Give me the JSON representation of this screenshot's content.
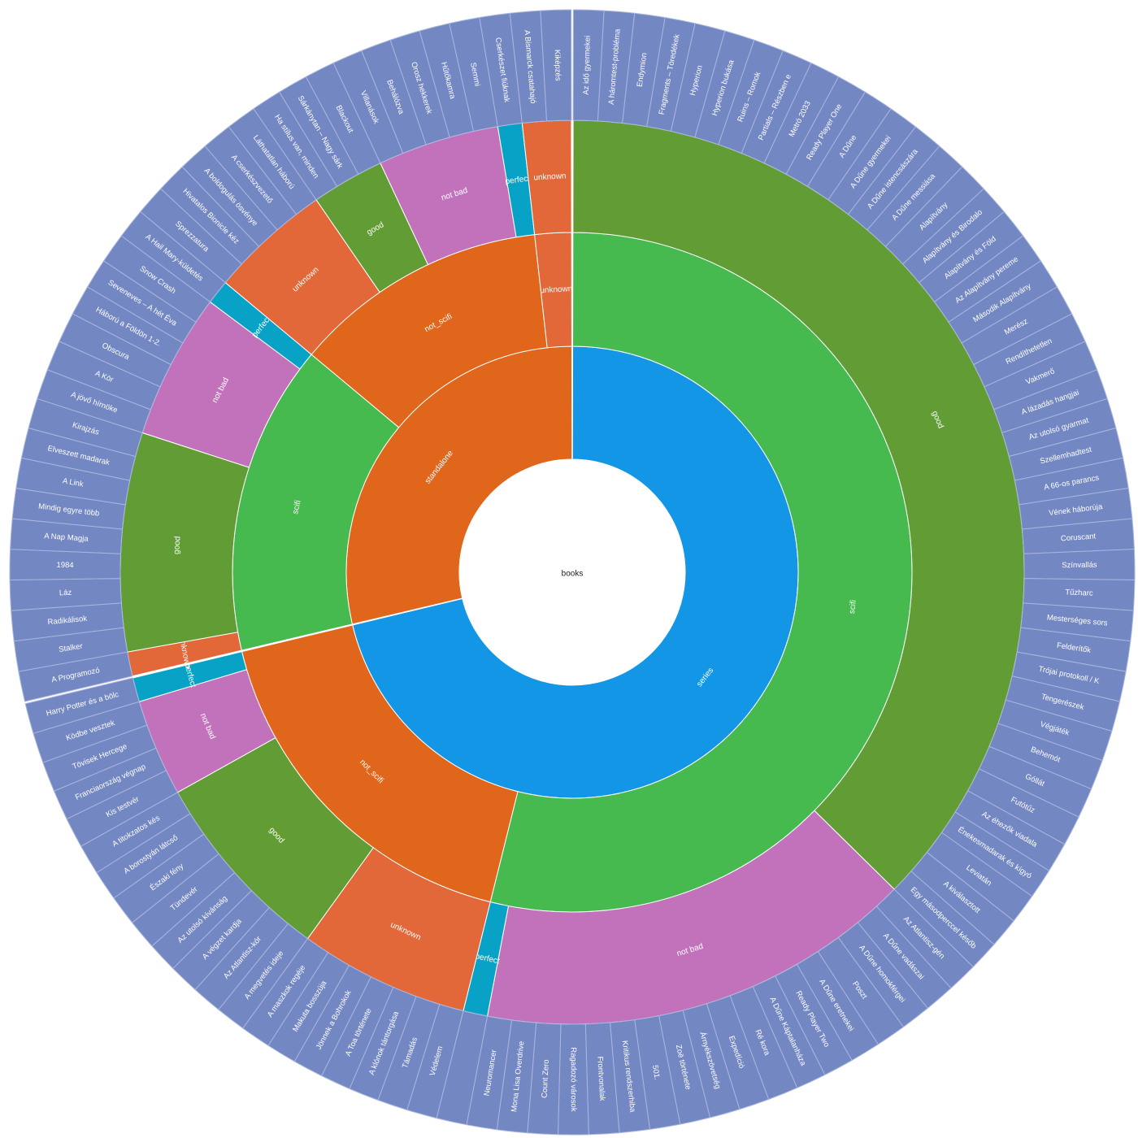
{
  "chart_data": {
    "type": "sunburst",
    "root_label": "books",
    "colors": {
      "series": "#1496e6",
      "standalone": "#e0661c",
      "scifi": "#46b94f",
      "not_scifi": "#e0661c",
      "good": "#619c34",
      "not bad": "#c272bb",
      "unknown": "#e26839",
      "perfect": "#08a2c6",
      "book": "#7387c3",
      "book_stroke": "#a9b6dc",
      "border": "#ffffff"
    },
    "tree": [
      {
        "label": "series",
        "children": [
          {
            "label": "scifi",
            "children": [
              {
                "label": "good",
                "books": [
                  "Az idő gyermekei",
                  "A háromtest-probléma",
                  "Endymion",
                  "Fragments – Töredékek",
                  "Hyperion",
                  "Hyperion bukása",
                  "Ruins – Romok",
                  "Partials – Részben e",
                  "Metró 2033",
                  "Ready Player One",
                  "A Dűne",
                  "A Dűne gyermekei",
                  "A Dűne istencsászára",
                  "A Dűne messiása",
                  "Alapítvány",
                  "Alapítvány és Birodalom",
                  "Alapítvány és Föld",
                  "Az Alapítvány pereme",
                  "Második Alapítvány",
                  "Merész",
                  "Rendíthetetlen",
                  "Vakmerő",
                  "A lázadás hangjai",
                  "Az utolsó gyarmat",
                  "Szellemhadtest",
                  "A 66-os parancs",
                  "Vének háborúja",
                  "Coruscant",
                  "Színvallás",
                  "Tűzharc",
                  "Mesterséges sors",
                  "Felderítők",
                  "Trójai protokoll / K",
                  "Tengerészek",
                  "Végjáték",
                  "Behemót",
                  "Góllát",
                  "Futótűz",
                  "Az éhezők viadala",
                  "Énekesmadarak és kígyók",
                  "Leviatán",
                  "A kiválasztott",
                  "Egy másodperccel később"
                ]
              },
              {
                "label": "not bad",
                "books": [
                  "Az Atlantisz-gén",
                  "A Dűne vadászai",
                  "A Dűne homokférgei",
                  "Poszt",
                  "A Dűne eretnekei",
                  "Ready Player Two",
                  "A Dűne Káptalanháza",
                  "Ré kora",
                  "Expedíció",
                  "Árnyékszövetség",
                  "Zoë története",
                  "501.",
                  "Kritikus rendszerhiba",
                  "Frontvonalak",
                  "Ragadozó városok",
                  "Count Zero",
                  "Mona Lisa Overdrive",
                  "Neuromancer"
                ]
              },
              {
                "label": "perfect",
                "books": [
                  ""
                ]
              }
            ]
          },
          {
            "label": "not_scifi",
            "children": [
              {
                "label": "unknown",
                "books": [
                  "Védelem",
                  "Támadás",
                  "A klónok tántorgása",
                  "A Toa története",
                  "Jönnek a Bohrokok",
                  "Makuta bosszúja",
                  "A maszkok regéje"
                ]
              },
              {
                "label": "good",
                "books": [
                  "A megvetés ideje",
                  "Az Atlantisz-kór",
                  "A végzet kardja",
                  "Az utolsó kívánság",
                  "Tündevér",
                  "Északi fény",
                  "A borostyán látcső",
                  "A titokzatos kés"
                ]
              },
              {
                "label": "not bad",
                "books": [
                  "Kis testvér",
                  "Franciaország végnap",
                  "Tövisek Hercege",
                  "Ködbe vesztek"
                ]
              },
              {
                "label": "perfect",
                "books": [
                  "Harry Potter és a bölcsek köve"
                ]
              }
            ]
          }
        ]
      },
      {
        "label": "standalone",
        "children": [
          {
            "label": "scifi",
            "children": [
              {
                "label": "unknown",
                "books": [
                  "A Programozó"
                ]
              },
              {
                "label": "good",
                "books": [
                  "Stalker",
                  "Radikálisok",
                  "Láz",
                  "1984",
                  "A Nap Magja",
                  "Mindig egyre több",
                  "A Link",
                  "Elveszett madarak",
                  "Kirajzás"
                ]
              },
              {
                "label": "not bad",
                "books": [
                  "A jövő hírnöke",
                  "A Kör",
                  "Obscura",
                  "Háború a Földön 1-2.",
                  "Seveneves – A hét Éva",
                  "Snow Crash"
                ]
              },
              {
                "label": "perfect",
                "books": [
                  "A Hail Mary-küldetés"
                ]
              }
            ]
          },
          {
            "label": "not_scifi",
            "children": [
              {
                "label": "unknown",
                "books": [
                  "Sprezzatura",
                  "Hivatalos Bionicle kézikönyv",
                  "A boldogulás ösvénye",
                  "A cserkészvezető",
                  "Láthatatlan háború"
                ]
              },
              {
                "label": "good",
                "books": [
                  "Ha stílus van, minden van",
                  "Sárkánytan – Nagy sárkánykönyv",
                  "Blackout"
                ]
              },
              {
                "label": "not bad",
                "books": [
                  "Villanások",
                  "Behálózva",
                  "Orosz hekkerek",
                  "Hűtőkamra",
                  "Semmi"
                ]
              },
              {
                "label": "perfect",
                "books": [
                  "Cserkészet fiúknak"
                ]
              }
            ]
          },
          {
            "label": "unknown",
            "children": [
              {
                "label": "unknown",
                "books": [
                  "A Bismarck csatahajó",
                  "Kiképzés"
                ]
              }
            ]
          }
        ]
      }
    ]
  }
}
